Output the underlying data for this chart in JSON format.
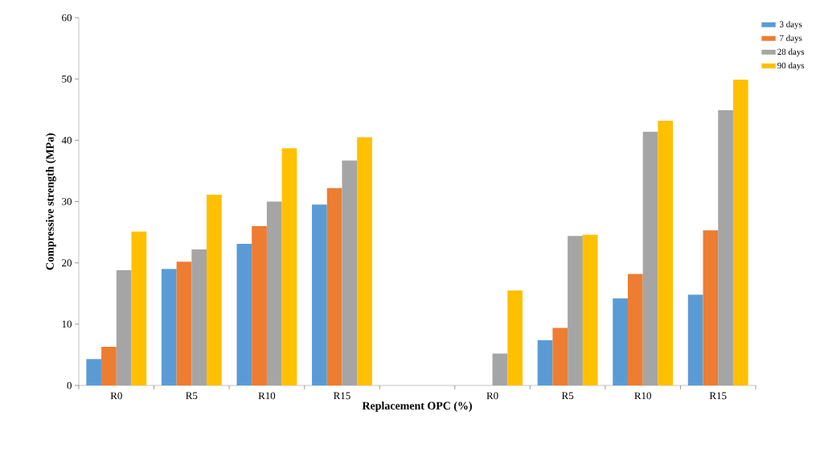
{
  "chart_data": {
    "type": "bar",
    "xlabel": "Replacement OPC (%)",
    "ylabel": "Compressive strength (MPa)",
    "categories": [
      "R0",
      "R5",
      "R10",
      "R15",
      null,
      "R0",
      "R5",
      "R10",
      "R15"
    ],
    "series": [
      {
        "name": "3 days",
        "color": "#5b9bd5",
        "values": [
          4.3,
          19.0,
          23.1,
          29.5,
          null,
          null,
          7.4,
          14.2,
          14.8
        ]
      },
      {
        "name": "7 days",
        "color": "#ed7d31",
        "values": [
          6.3,
          20.2,
          26.0,
          32.2,
          null,
          null,
          9.4,
          18.2,
          25.3
        ]
      },
      {
        "name": "28 days",
        "color": "#a5a5a5",
        "values": [
          18.8,
          22.2,
          30.0,
          36.7,
          null,
          5.2,
          24.4,
          41.4,
          44.9
        ]
      },
      {
        "name": "90 days",
        "color": "#ffc000",
        "values": [
          25.1,
          31.1,
          38.7,
          40.5,
          null,
          15.5,
          24.6,
          43.2,
          49.9
        ]
      }
    ],
    "ylim": [
      0,
      60
    ],
    "yticks": [
      0,
      10,
      20,
      30,
      40,
      50,
      60
    ],
    "grid": false,
    "legend": "top right"
  }
}
